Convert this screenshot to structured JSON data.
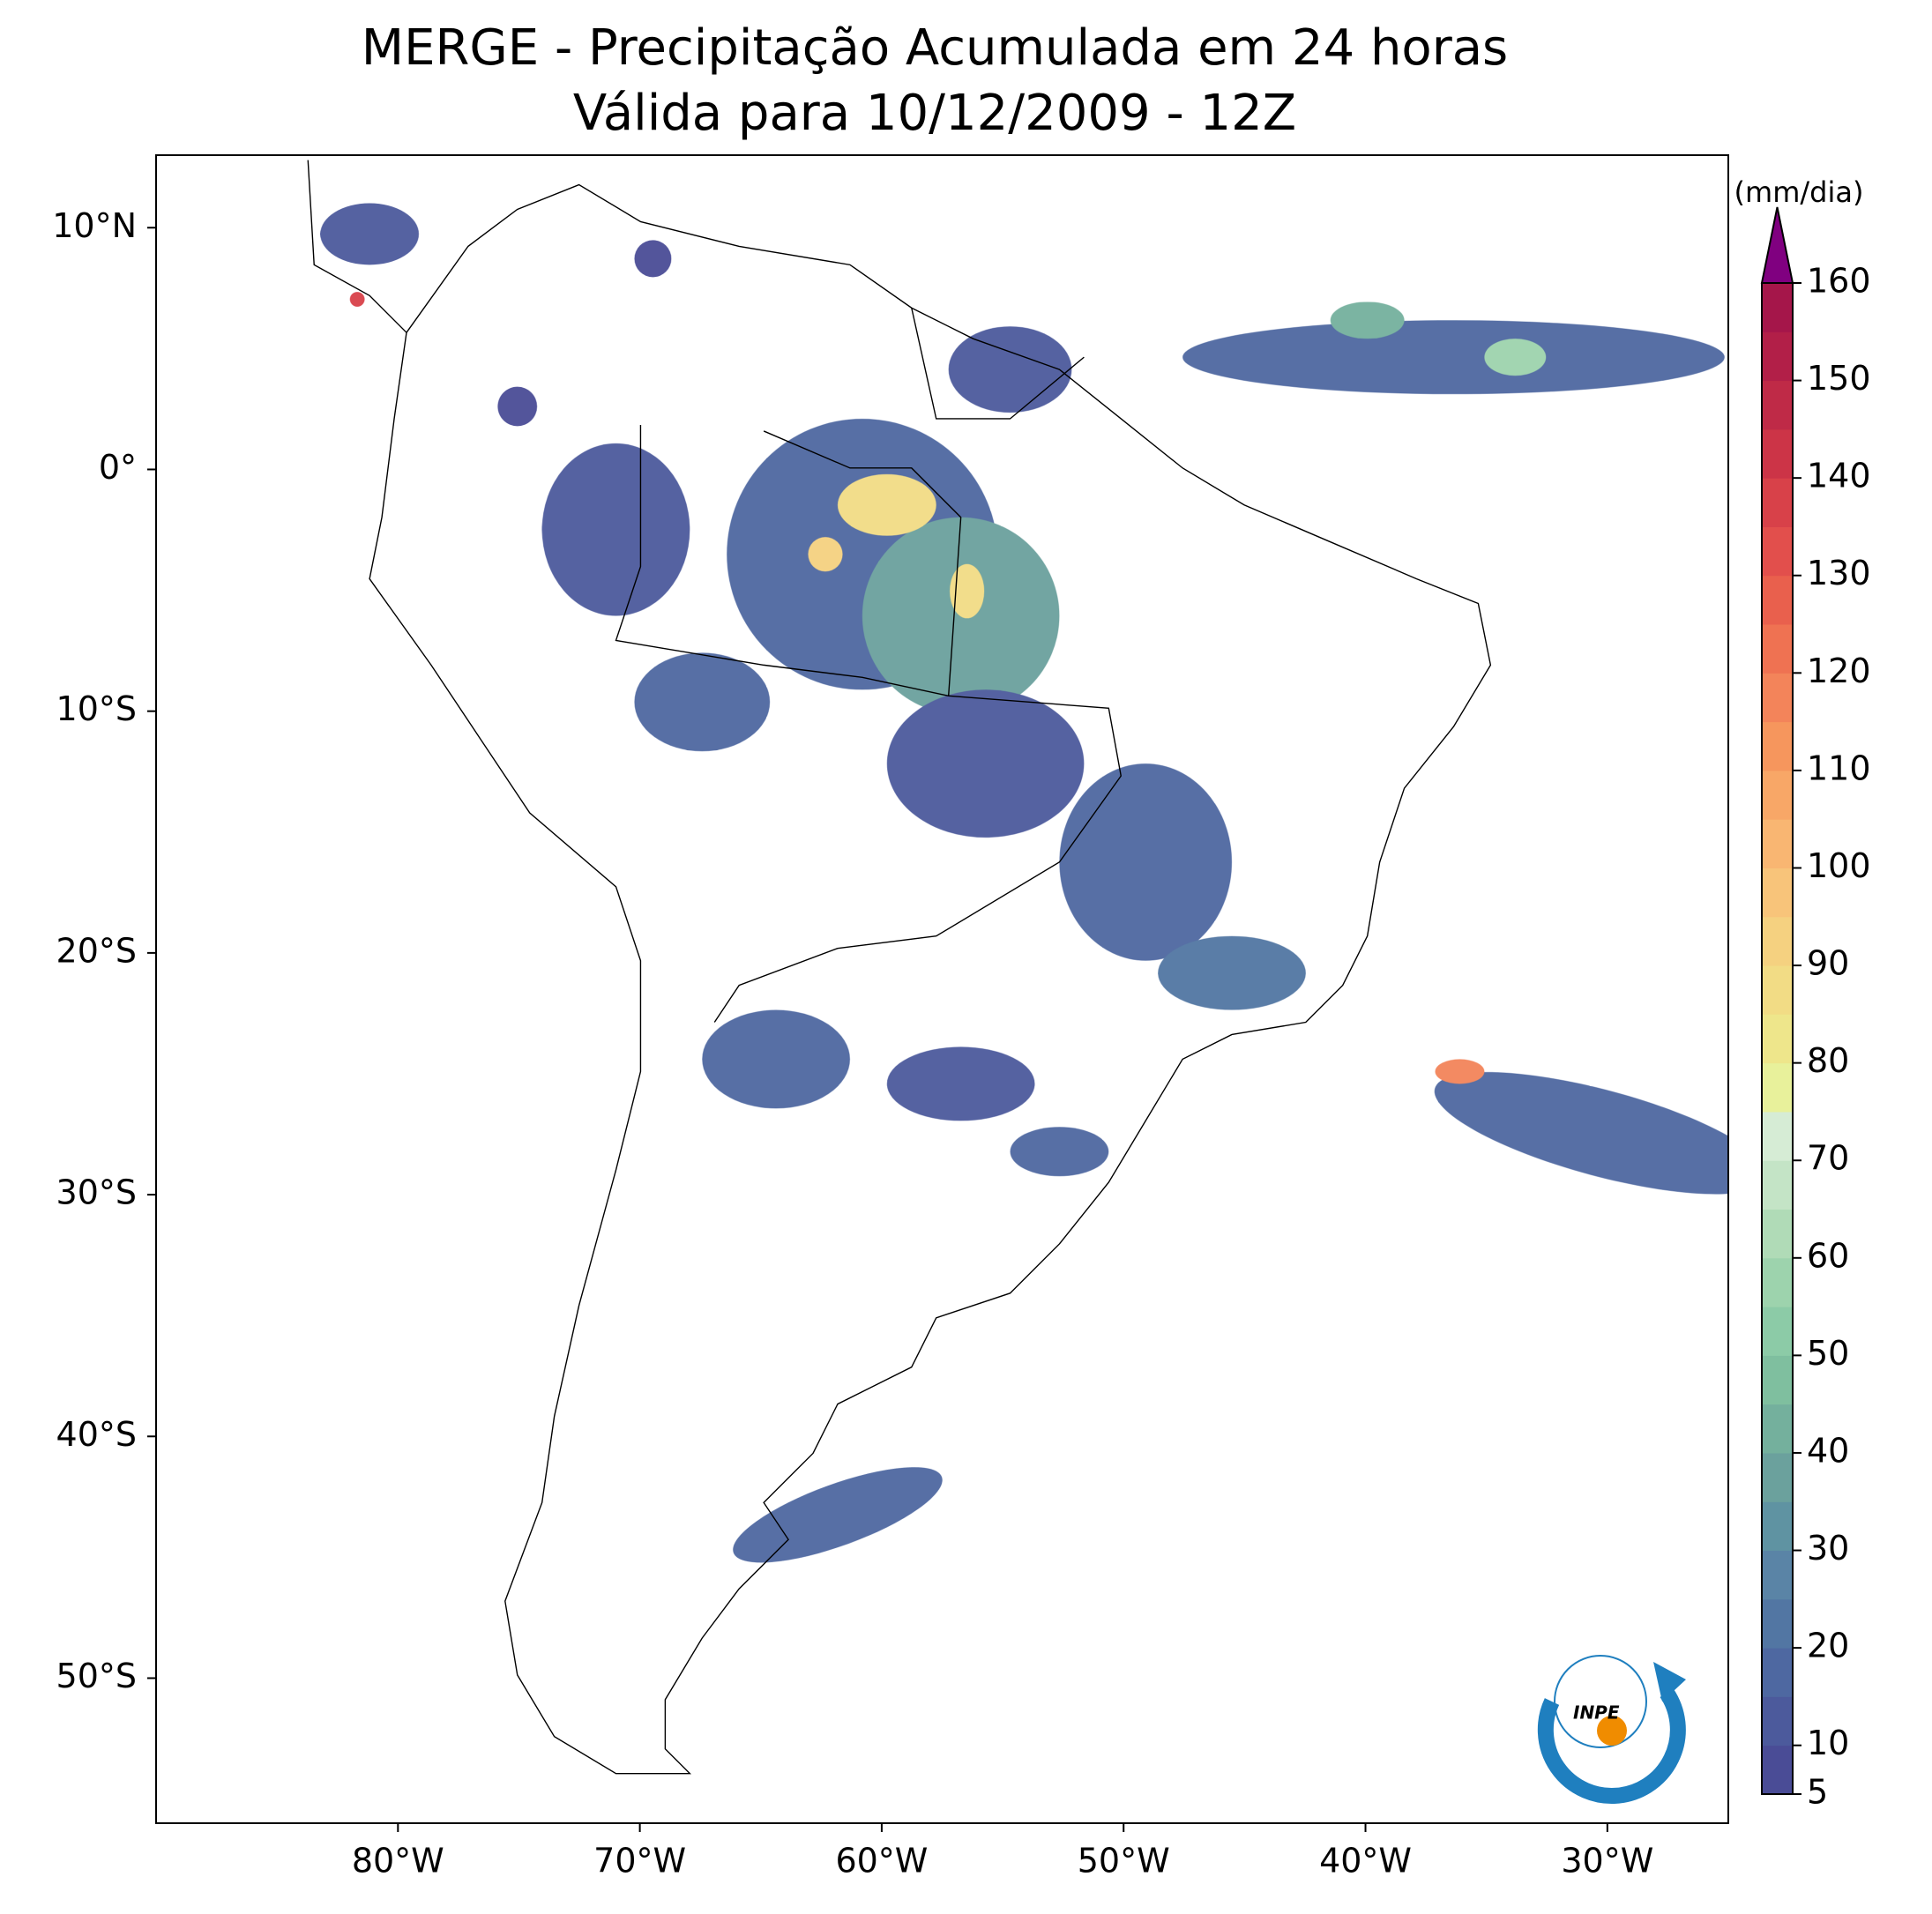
{
  "chart_data": {
    "type": "map",
    "title": "MERGE - Precipitação Acumulada em 24 horas",
    "subtitle": "Válida para 10/12/2009 - 12Z",
    "xlim": [
      -90,
      -25
    ],
    "ylim": [
      -56,
      13
    ],
    "xticks": [
      {
        "value": -80,
        "label": "80°W"
      },
      {
        "value": -70,
        "label": "70°W"
      },
      {
        "value": -60,
        "label": "60°W"
      },
      {
        "value": -50,
        "label": "50°W"
      },
      {
        "value": -40,
        "label": "40°W"
      },
      {
        "value": -30,
        "label": "30°W"
      }
    ],
    "yticks": [
      {
        "value": 10,
        "label": "10°N"
      },
      {
        "value": 0,
        "label": "0°"
      },
      {
        "value": -10,
        "label": "10°S"
      },
      {
        "value": -20,
        "label": "20°S"
      },
      {
        "value": -30,
        "label": "30°S"
      },
      {
        "value": -40,
        "label": "40°S"
      },
      {
        "value": -50,
        "label": "50°S"
      }
    ],
    "colorbar": {
      "label": "(mm/dia)",
      "lim": [
        5,
        160
      ],
      "ticks": [
        5,
        10,
        20,
        30,
        40,
        50,
        60,
        70,
        80,
        90,
        100,
        110,
        120,
        130,
        140,
        150,
        160
      ],
      "colors": [
        "#4a4c96",
        "#4c5a9c",
        "#4e68a1",
        "#5276a3",
        "#5a84a6",
        "#5f93a2",
        "#6ba19d",
        "#74b09d",
        "#7fbf9f",
        "#8ccba7",
        "#9dd3ad",
        "#b0dbb7",
        "#c4e4c6",
        "#d6ecd5",
        "#e8f19b",
        "#eee68b",
        "#f2dc85",
        "#f5d180",
        "#f8c47a",
        "#f9b672",
        "#f8a767",
        "#f6965d",
        "#f3845a",
        "#ef7252",
        "#e9604d",
        "#e24f4c",
        "#d84149",
        "#cc3447",
        "#bf2a47",
        "#b21f48",
        "#a5164a"
      ],
      "extend_color": "#800080"
    },
    "logo": "INPE"
  }
}
